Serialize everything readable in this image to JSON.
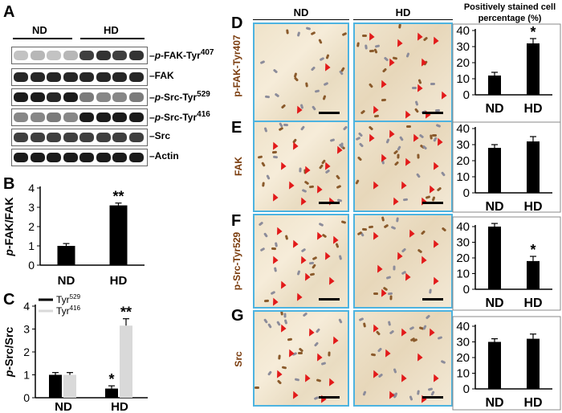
{
  "panels": {
    "A": {
      "label": "A",
      "groups": [
        "ND",
        "HD"
      ],
      "blots": [
        {
          "label": "p-FAK-Tyr407",
          "label_html": "<i>p</i>-FAK-Tyr<sup>407</sup>"
        },
        {
          "label": "FAK",
          "label_html": "FAK"
        },
        {
          "label": "p-Src-Tyr529",
          "label_html": "<i>p</i>-Src-Tyr<sup>529</sup>"
        },
        {
          "label": "p-Src-Tyr416",
          "label_html": "<i>p</i>-Src-Tyr<sup>416</sup>"
        },
        {
          "label": "Src",
          "label_html": "Src"
        },
        {
          "label": "Actin",
          "label_html": "Actin"
        }
      ]
    },
    "B": {
      "label": "B"
    },
    "C": {
      "label": "C"
    },
    "D": {
      "label": "D",
      "stain": "p-FAK-Tyr407"
    },
    "E": {
      "label": "E",
      "stain": "FAK"
    },
    "F": {
      "label": "F",
      "stain": "p-Src-Tyr529"
    },
    "G": {
      "label": "G",
      "stain": "Src"
    },
    "histology_headers": [
      "ND",
      "HD"
    ],
    "quant_title": "Positively stained cell percentage (%)"
  },
  "colors": {
    "bar_black": "#000000",
    "bar_gray": "#d9d9d9",
    "frame_blue": "#4db3e0",
    "arrow_red": "#e21a1a",
    "stain_brown": "#7a3b0c"
  },
  "chart_data": [
    {
      "id": "B",
      "type": "bar",
      "categories": [
        "ND",
        "HD"
      ],
      "values": [
        1.0,
        3.1
      ],
      "errors": [
        0.12,
        0.12
      ],
      "ylabel": "p-FAK/FAK",
      "ylim": [
        0,
        4
      ],
      "yticks": [
        0,
        1,
        2,
        3,
        4
      ],
      "annotations": [
        "",
        "**"
      ]
    },
    {
      "id": "C",
      "type": "bar",
      "categories": [
        "ND",
        "HD"
      ],
      "series": [
        {
          "name": "Tyr529",
          "values": [
            1.0,
            0.4
          ],
          "errors": [
            0.1,
            0.12
          ],
          "annotations": [
            "",
            "*"
          ],
          "color": "#000000"
        },
        {
          "name": "Tyr416",
          "values": [
            1.0,
            3.15
          ],
          "errors": [
            0.1,
            0.3
          ],
          "annotations": [
            "",
            "**"
          ],
          "color": "#d9d9d9"
        }
      ],
      "ylabel": "p-Src/Src",
      "ylim": [
        0,
        4
      ],
      "yticks": [
        0,
        1,
        2,
        3,
        4
      ],
      "legend": "top-left"
    },
    {
      "id": "D",
      "type": "bar",
      "categories": [
        "ND",
        "HD"
      ],
      "values": [
        12,
        32
      ],
      "errors": [
        2,
        3
      ],
      "annotations": [
        "",
        "*"
      ],
      "ylim": [
        0,
        40
      ],
      "yticks": [
        0,
        10,
        20,
        30,
        40
      ]
    },
    {
      "id": "E",
      "type": "bar",
      "categories": [
        "ND",
        "HD"
      ],
      "values": [
        28,
        32
      ],
      "errors": [
        2,
        3
      ],
      "annotations": [
        "",
        ""
      ],
      "ylim": [
        0,
        40
      ],
      "yticks": [
        0,
        10,
        20,
        30,
        40
      ]
    },
    {
      "id": "F",
      "type": "bar",
      "categories": [
        "ND",
        "HD"
      ],
      "values": [
        40,
        18
      ],
      "errors": [
        2,
        3
      ],
      "annotations": [
        "",
        "*"
      ],
      "ylim": [
        0,
        40
      ],
      "yticks": [
        0,
        10,
        20,
        30,
        40
      ]
    },
    {
      "id": "G",
      "type": "bar",
      "categories": [
        "ND",
        "HD"
      ],
      "values": [
        30,
        32
      ],
      "errors": [
        2,
        3
      ],
      "annotations": [
        "",
        ""
      ],
      "ylim": [
        0,
        40
      ],
      "yticks": [
        0,
        10,
        20,
        30,
        40
      ]
    }
  ]
}
